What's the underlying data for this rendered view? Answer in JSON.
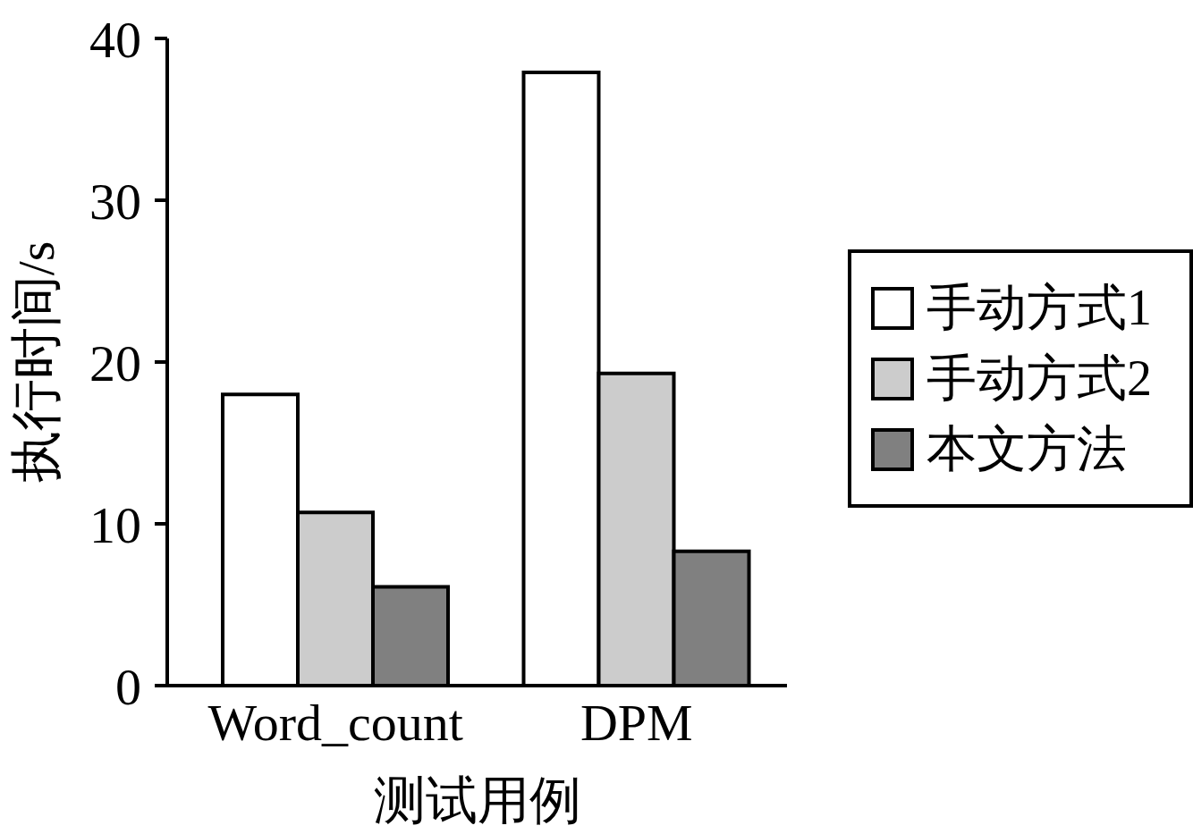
{
  "chart_data": {
    "type": "bar",
    "xlabel": "测试用例",
    "ylabel": "执行时间/s",
    "categories": [
      "Word_count",
      "DPM"
    ],
    "series": [
      {
        "name": "手动方式1",
        "color": "#ffffff",
        "values": [
          18,
          37.9
        ]
      },
      {
        "name": "手动方式2",
        "color": "#cccccc",
        "values": [
          10.7,
          19.3
        ]
      },
      {
        "name": "本文方法",
        "color": "#808080",
        "values": [
          6.1,
          8.3
        ]
      }
    ],
    "ylim": [
      0,
      40
    ],
    "yticks": [
      0,
      10,
      20,
      30,
      40
    ],
    "legend": "right"
  }
}
